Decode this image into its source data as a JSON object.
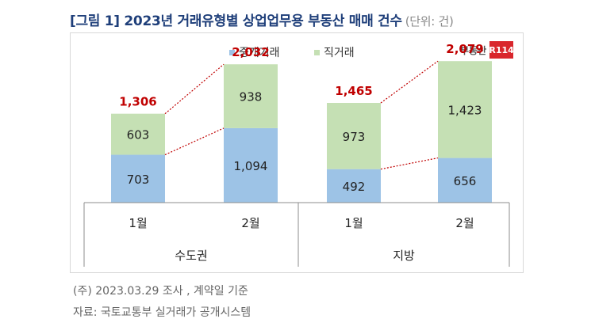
{
  "title": "[그림 1] 2023년 거래유형별 상업업무용 부동산 매매 건수",
  "unit": "(단위: 건)",
  "logo": {
    "text": "부동산",
    "badge": "R114"
  },
  "notes": {
    "note": "(주) 2023.03.29 조사 , 계약일 기준",
    "source": "자료: 국토교통부 실거래가 공개시스템"
  },
  "colors": {
    "broker": "#9dc3e6",
    "direct": "#c5e0b4",
    "total_label": "#c00000",
    "connector": "#c00000",
    "legend_text": "#333333"
  },
  "chart_data": {
    "type": "bar",
    "stacked": true,
    "title": "[그림 1] 2023년 거래유형별 상업업무용 부동산 매매 건수",
    "unit": "(단위: 건)",
    "groups": [
      "수도권",
      "지방"
    ],
    "categories": [
      "1월",
      "2월",
      "1월",
      "2월"
    ],
    "group_of_category": [
      0,
      0,
      1,
      1
    ],
    "series": [
      {
        "name": "중개거래",
        "values": [
          703,
          1094,
          492,
          656
        ]
      },
      {
        "name": "직거래",
        "values": [
          603,
          938,
          973,
          1423
        ]
      }
    ],
    "totals": [
      1306,
      2032,
      1465,
      2079
    ],
    "total_labels": [
      "1,306",
      "2,032",
      "1,465",
      "2,079"
    ],
    "value_labels": [
      [
        "703",
        "1,094",
        "492",
        "656"
      ],
      [
        "603",
        "938",
        "973",
        "1,423"
      ]
    ],
    "legend_position": "top-center",
    "grid": false,
    "ylim": [
      0,
      2300
    ]
  }
}
